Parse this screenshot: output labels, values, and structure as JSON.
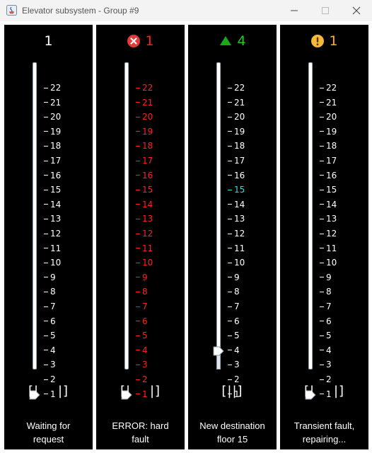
{
  "window": {
    "title": "Elevator subsystem - Group #9",
    "minimize_icon": "minimize-icon",
    "maximize_icon": "maximize-icon",
    "close_icon": "close-icon"
  },
  "colors": {
    "normal": "#ffffff",
    "error": "#ff2020",
    "moving": "#22cc22",
    "warning": "#ffb020",
    "destination": "#33dddd"
  },
  "floors": [
    "22",
    "21",
    "20",
    "19",
    "18",
    "17",
    "16",
    "15",
    "14",
    "13",
    "12",
    "11",
    "10",
    "9",
    "8",
    "7",
    "6",
    "5",
    "4",
    "3",
    "2",
    "1"
  ],
  "elevators": [
    {
      "floor": "1",
      "state": "idle",
      "icon": "",
      "color": "#ffffff",
      "tick_color": "#ffffff",
      "position_floor": 1,
      "destination": "",
      "doors": "[|    |]",
      "status_line1": "Waiting for",
      "status_line2": "request"
    },
    {
      "floor": "1",
      "state": "error",
      "icon": "error-x-icon",
      "color": "#ff2020",
      "tick_color": "#ff2020",
      "position_floor": 1,
      "destination": "",
      "doors": "[|    |]",
      "status_line1": "ERROR: hard",
      "status_line2": "fault"
    },
    {
      "floor": "4",
      "state": "moving-up",
      "icon": "up-arrow-icon",
      "color": "#22cc22",
      "tick_color": "#ffffff",
      "position_floor": 4,
      "destination": "15",
      "doors": "[||]",
      "status_line1": "New destination",
      "status_line2": "floor 15"
    },
    {
      "floor": "1",
      "state": "transient-fault",
      "icon": "warning-icon",
      "color": "#ffb020",
      "tick_color": "#ffffff",
      "position_floor": 1,
      "destination": "",
      "doors": "[|    |]",
      "status_line1": "Transient fault,",
      "status_line2": "repairing..."
    }
  ]
}
